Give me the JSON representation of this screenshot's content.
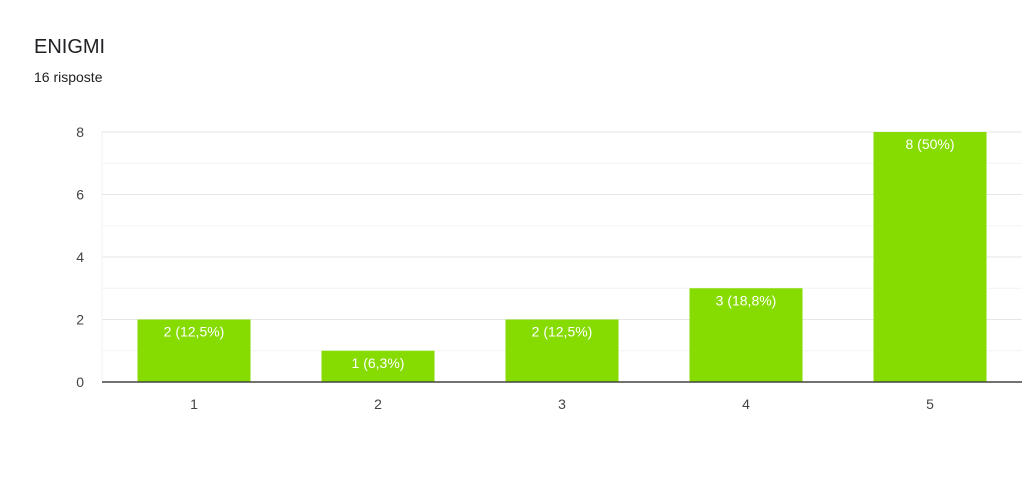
{
  "header": {
    "title": "ENIGMI",
    "subtitle": "16 risposte"
  },
  "chart_data": {
    "type": "bar",
    "categories": [
      "1",
      "2",
      "3",
      "4",
      "5"
    ],
    "values": [
      2,
      1,
      2,
      3,
      8
    ],
    "data_labels": [
      "2 (12,5%)",
      "1 (6,3%)",
      "2 (12,5%)",
      "3 (18,8%)",
      "8 (50%)"
    ],
    "ylim": [
      0,
      8
    ],
    "yticks": [
      0,
      2,
      4,
      6,
      8
    ],
    "minor_grid_step": 1,
    "grid": true,
    "legend": "none",
    "bar_color": "#86dc01",
    "gridline_color": "#e6e6e6",
    "axis_color": "#444444"
  }
}
